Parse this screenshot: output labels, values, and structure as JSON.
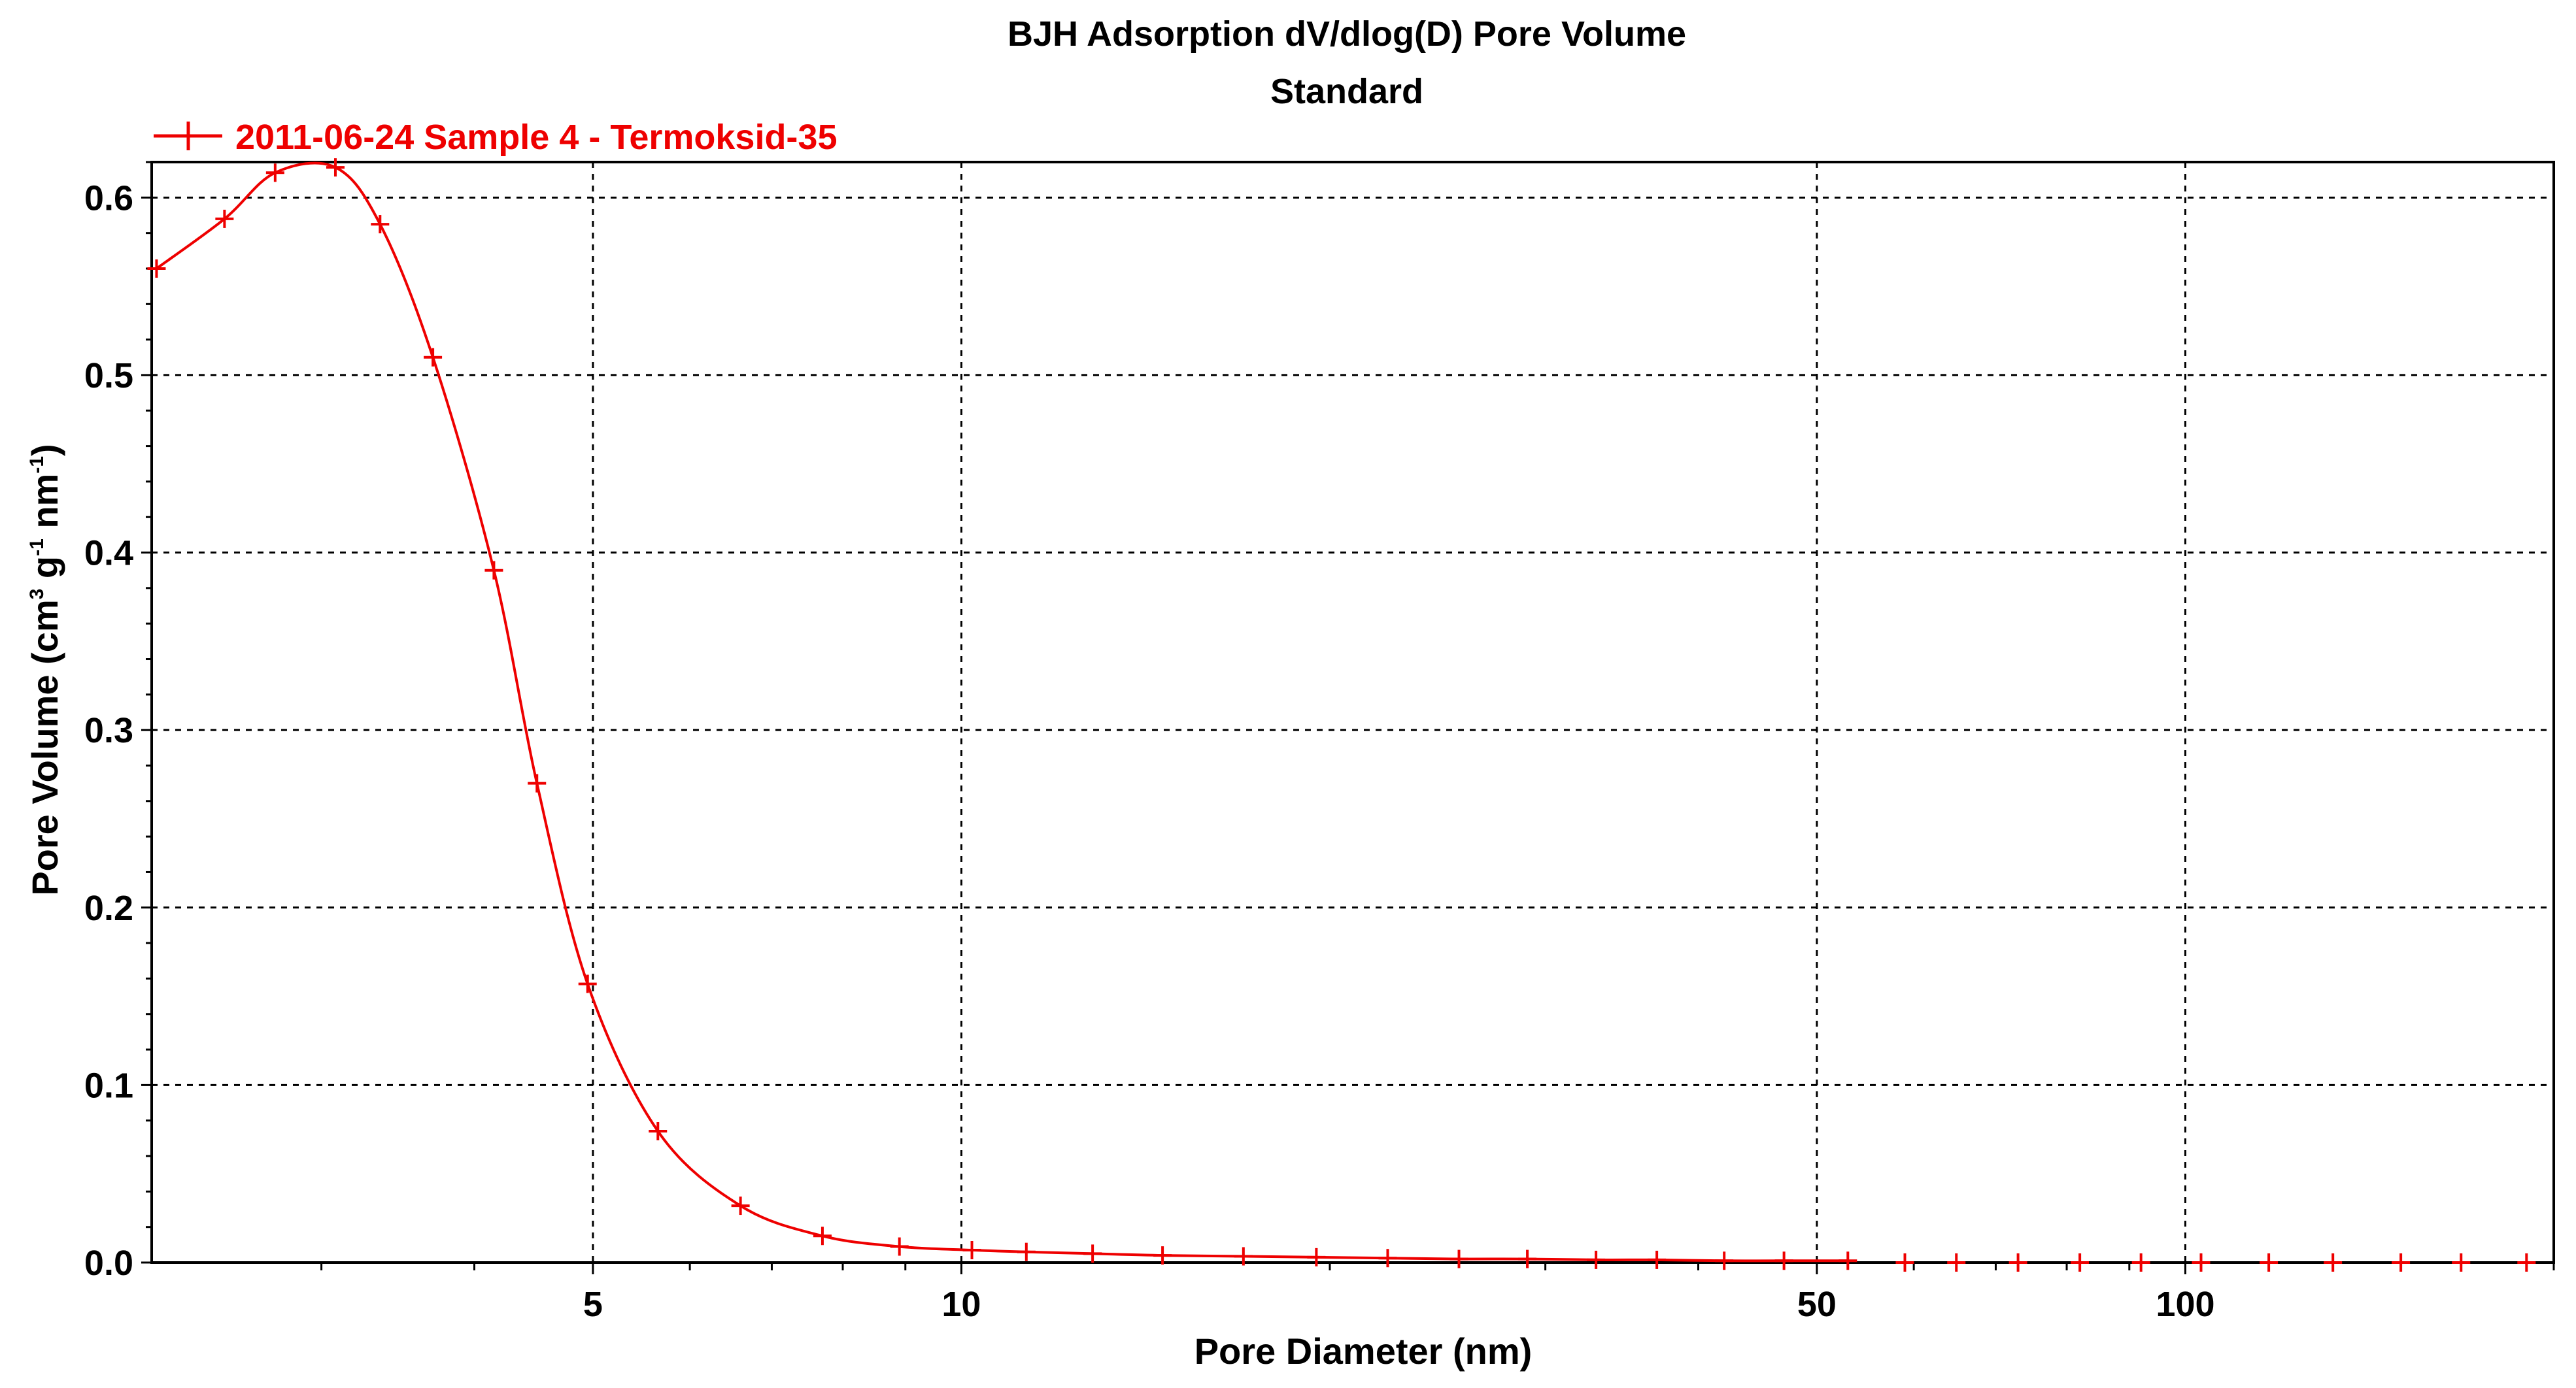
{
  "chart_data": {
    "type": "line",
    "title": "BJH Adsorption dV/dlog(D) Pore Volume",
    "subtitle": "Standard",
    "xlabel": "Pore Diameter (nm)",
    "ylabel_parts": {
      "base": "Pore Volume (cm",
      "sup1": "3",
      "mid1": " g",
      "sup2": "-1",
      "mid2": " nm",
      "sup3": "-1",
      "end": ")"
    },
    "x_scale": "log",
    "xlim": [
      2.18,
      200
    ],
    "ylim": [
      0.0,
      0.62
    ],
    "y_ticks": [
      {
        "value": 0.0,
        "label": "0.0"
      },
      {
        "value": 0.1,
        "label": "0.1"
      },
      {
        "value": 0.2,
        "label": "0.2"
      },
      {
        "value": 0.3,
        "label": "0.3"
      },
      {
        "value": 0.4,
        "label": "0.4"
      },
      {
        "value": 0.5,
        "label": "0.5"
      },
      {
        "value": 0.6,
        "label": "0.6"
      }
    ],
    "x_ticks": [
      {
        "value": 5,
        "label": "5"
      },
      {
        "value": 10,
        "label": "10"
      },
      {
        "value": 50,
        "label": "50"
      },
      {
        "value": 100,
        "label": "100"
      }
    ],
    "x_minor_ticks": [
      3,
      4,
      6,
      7,
      8,
      9,
      20,
      30,
      40,
      60,
      70,
      80,
      90,
      200
    ],
    "grid": true,
    "legend_position": "top-left",
    "colors": {
      "series": "#ee0000",
      "axis": "#000000",
      "grid": "#000000"
    },
    "series": [
      {
        "name": "2011-06-24 Sample 4 - Termoksid-35",
        "points": [
          {
            "x": 2.2,
            "y": 0.56
          },
          {
            "x": 2.5,
            "y": 0.588
          },
          {
            "x": 2.75,
            "y": 0.614
          },
          {
            "x": 3.08,
            "y": 0.617
          },
          {
            "x": 3.35,
            "y": 0.585
          },
          {
            "x": 3.7,
            "y": 0.51
          },
          {
            "x": 4.15,
            "y": 0.39
          },
          {
            "x": 4.5,
            "y": 0.27
          },
          {
            "x": 4.95,
            "y": 0.157
          },
          {
            "x": 5.65,
            "y": 0.074
          },
          {
            "x": 6.6,
            "y": 0.032
          },
          {
            "x": 7.7,
            "y": 0.015
          },
          {
            "x": 8.9,
            "y": 0.009
          },
          {
            "x": 10.2,
            "y": 0.007
          },
          {
            "x": 11.3,
            "y": 0.006
          },
          {
            "x": 12.8,
            "y": 0.005
          },
          {
            "x": 14.6,
            "y": 0.004
          },
          {
            "x": 17.0,
            "y": 0.0035
          },
          {
            "x": 19.5,
            "y": 0.003
          },
          {
            "x": 22.3,
            "y": 0.0025
          },
          {
            "x": 25.5,
            "y": 0.002
          },
          {
            "x": 29.0,
            "y": 0.002
          },
          {
            "x": 33.0,
            "y": 0.0015
          },
          {
            "x": 37.0,
            "y": 0.0015
          },
          {
            "x": 42.0,
            "y": 0.001
          },
          {
            "x": 47.0,
            "y": 0.001
          },
          {
            "x": 53.0,
            "y": 0.001
          },
          {
            "x": 59.0,
            "y": 0.0
          },
          {
            "x": 65.0,
            "y": 0.0
          },
          {
            "x": 73.0,
            "y": 0.0
          },
          {
            "x": 82.0,
            "y": 0.0
          },
          {
            "x": 92.0,
            "y": 0.0
          },
          {
            "x": 103.0,
            "y": 0.0
          },
          {
            "x": 117.0,
            "y": 0.0
          },
          {
            "x": 132.0,
            "y": 0.0
          },
          {
            "x": 150.0,
            "y": 0.0
          },
          {
            "x": 168.0,
            "y": 0.0
          },
          {
            "x": 190.0,
            "y": 0.0
          }
        ]
      }
    ]
  }
}
